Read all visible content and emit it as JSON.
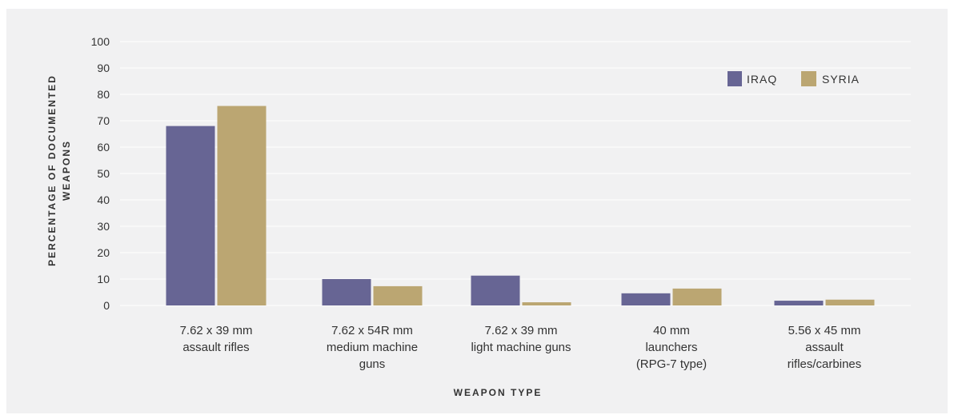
{
  "chart_data": {
    "type": "bar",
    "title": "",
    "xlabel": "WEAPON TYPE",
    "ylabel_lines": [
      "PERCENTAGE OF DOCUMENTED",
      "WEAPONS"
    ],
    "ylim": [
      0,
      100
    ],
    "yticks": [
      0,
      10,
      20,
      30,
      40,
      50,
      60,
      70,
      80,
      90,
      100
    ],
    "categories": [
      [
        "7.62 x 39 mm",
        "assault rifles"
      ],
      [
        "7.62 x 54R mm",
        "medium machine",
        "guns"
      ],
      [
        "7.62 x 39 mm",
        "light machine guns"
      ],
      [
        "40 mm",
        "launchers",
        "(RPG-7 type)"
      ],
      [
        "5.56 x 45 mm",
        "assault",
        "rifles/carbines"
      ]
    ],
    "series": [
      {
        "name": "IRAQ",
        "color": "#676594",
        "values": [
          68,
          10,
          11.3,
          4.6,
          1.8
        ]
      },
      {
        "name": "SYRIA",
        "color": "#bba672",
        "values": [
          75.6,
          7.3,
          1.2,
          6.4,
          2.2
        ]
      }
    ],
    "grid": true,
    "legend_position": "top-right"
  }
}
